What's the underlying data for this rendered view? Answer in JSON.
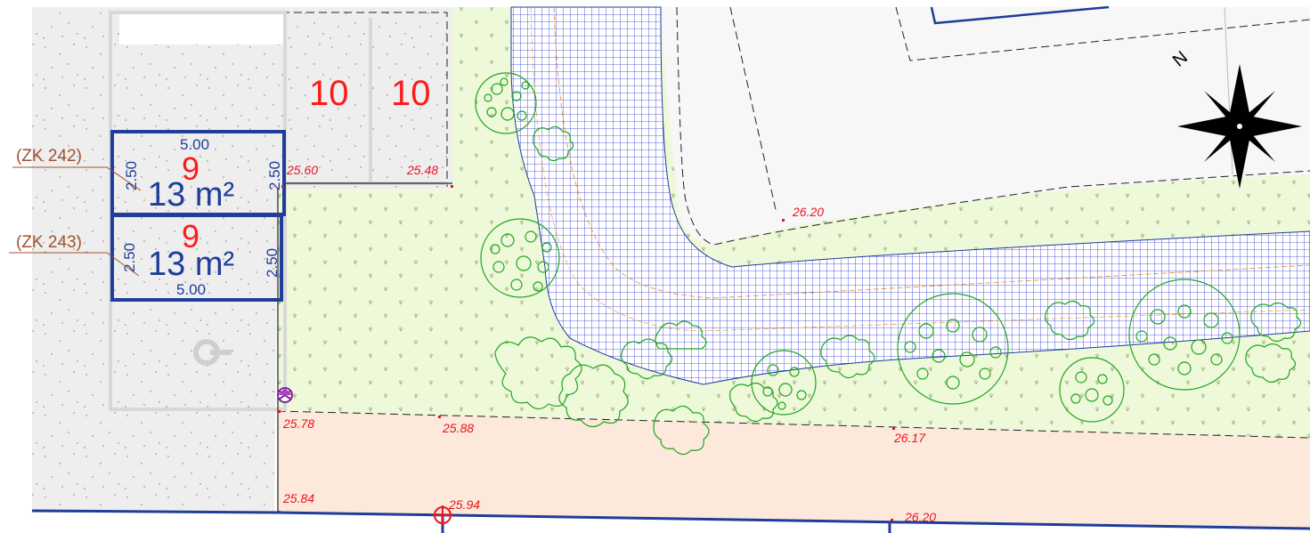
{
  "compass": {
    "north_label": "N"
  },
  "parking_numbers": {
    "upper_left": "10",
    "upper_right": "10",
    "space_upper": "9",
    "space_lower": "9"
  },
  "parking_spaces": [
    {
      "label": "(ZK 242)",
      "area": "13 m²",
      "width": "5.00",
      "depth_left": "2.50",
      "depth_right": "2.50"
    },
    {
      "label": "(ZK 243)",
      "area": "13 m²",
      "width": "5.00",
      "depth_left": "2.50",
      "depth_right": "2.50"
    }
  ],
  "elevations": [
    "25.60",
    "25.48",
    "26.20",
    "25.78",
    "25.88",
    "26.17",
    "25.84",
    "25.94",
    "26.20"
  ],
  "colors": {
    "meadow": "#eef9d9",
    "paving_grid": "#2b36d9",
    "sidewalk": "#fde9dc",
    "parking": "#eeeeee",
    "shrub": "#1fa61f",
    "dimension": "#1f3d99",
    "level_text": "#e8141a"
  }
}
